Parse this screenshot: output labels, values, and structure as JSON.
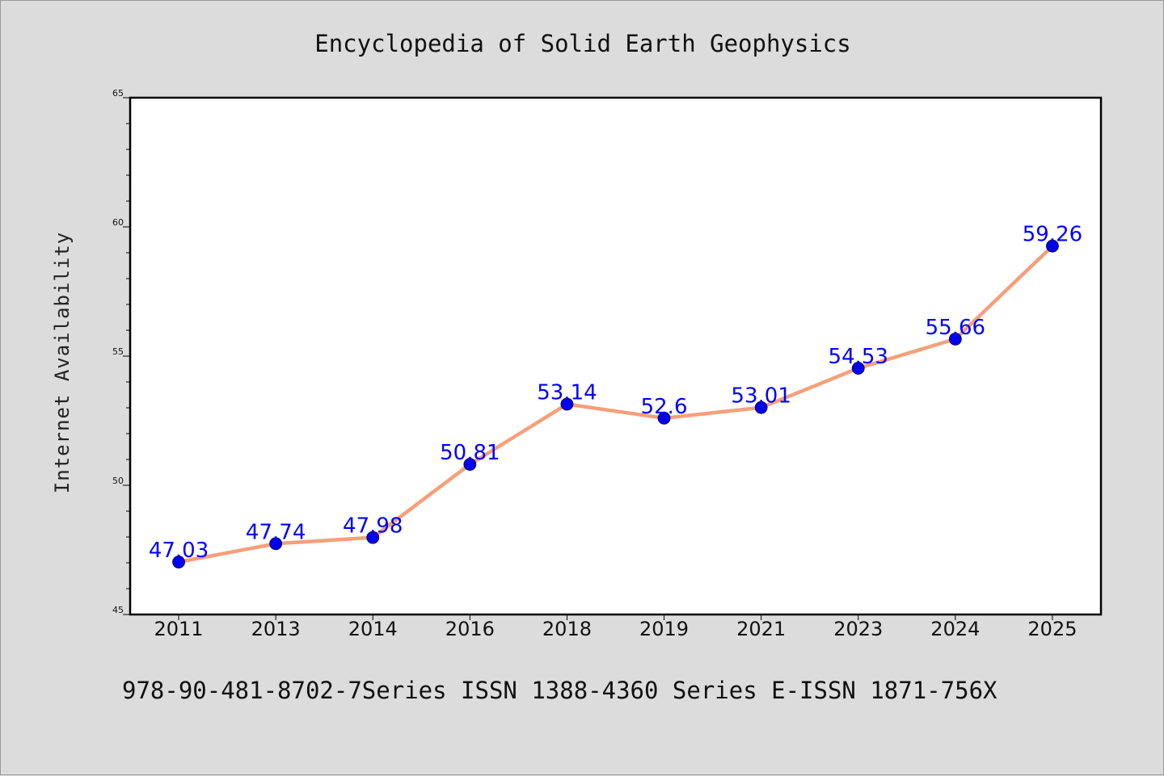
{
  "chart_data": {
    "type": "line",
    "title": "Encyclopedia of Solid Earth Geophysics",
    "ylabel": "Internet Availability",
    "xlabel": "",
    "categories": [
      "2011",
      "2013",
      "2014",
      "2016",
      "2018",
      "2019",
      "2021",
      "2023",
      "2024",
      "2025"
    ],
    "values": [
      47.03,
      47.74,
      47.98,
      50.81,
      53.14,
      52.6,
      53.01,
      54.53,
      55.66,
      59.26
    ],
    "data_labels": [
      "47.03",
      "47.74",
      "47.98",
      "50.81",
      "53.14",
      "52.6",
      "53.01",
      "54.53",
      "55.66",
      "59.26"
    ],
    "ylim": [
      45,
      65
    ],
    "yticks": [
      "45",
      "50",
      "55",
      "60",
      "65"
    ],
    "grid": false,
    "line_color": "#f5a07a",
    "marker_color": "#0000ee",
    "label_color": "#0000ff"
  },
  "footer": {
    "text": "978-90-481-8702-7Series ISSN 1388-4360 Series E-ISSN 1871-756X"
  }
}
